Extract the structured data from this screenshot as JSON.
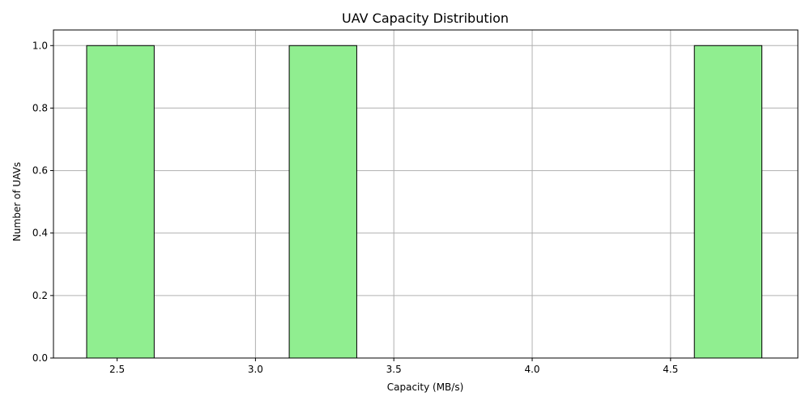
{
  "chart_data": {
    "type": "bar",
    "subtype": "histogram",
    "title": "UAV Capacity Distribution",
    "xlabel": "Capacity (MB/s)",
    "ylabel": "Number of UAVs",
    "xlim": [
      2.27,
      4.96
    ],
    "ylim": [
      0,
      1.05
    ],
    "xticks": [
      2.5,
      3.0,
      3.5,
      4.0,
      4.5
    ],
    "xtick_labels": [
      "2.5",
      "3.0",
      "3.5",
      "4.0",
      "4.5"
    ],
    "yticks": [
      0.0,
      0.2,
      0.4,
      0.6,
      0.8,
      1.0
    ],
    "ytick_labels": [
      "0.0",
      "0.2",
      "0.4",
      "0.6",
      "0.8",
      "1.0"
    ],
    "grid": true,
    "bins": [
      {
        "x0": 2.39,
        "x1": 2.634,
        "count": 1
      },
      {
        "x0": 2.634,
        "x1": 2.878,
        "count": 0
      },
      {
        "x0": 2.878,
        "x1": 3.122,
        "count": 0
      },
      {
        "x0": 3.122,
        "x1": 3.366,
        "count": 1
      },
      {
        "x0": 3.366,
        "x1": 3.61,
        "count": 0
      },
      {
        "x0": 3.61,
        "x1": 3.854,
        "count": 0
      },
      {
        "x0": 3.854,
        "x1": 4.098,
        "count": 0
      },
      {
        "x0": 4.098,
        "x1": 4.342,
        "count": 0
      },
      {
        "x0": 4.342,
        "x1": 4.586,
        "count": 0
      },
      {
        "x0": 4.586,
        "x1": 4.83,
        "count": 1
      }
    ],
    "bar_color": "#90ee90",
    "edge_color": "#000000",
    "grid_color": "#b0b0b0"
  }
}
